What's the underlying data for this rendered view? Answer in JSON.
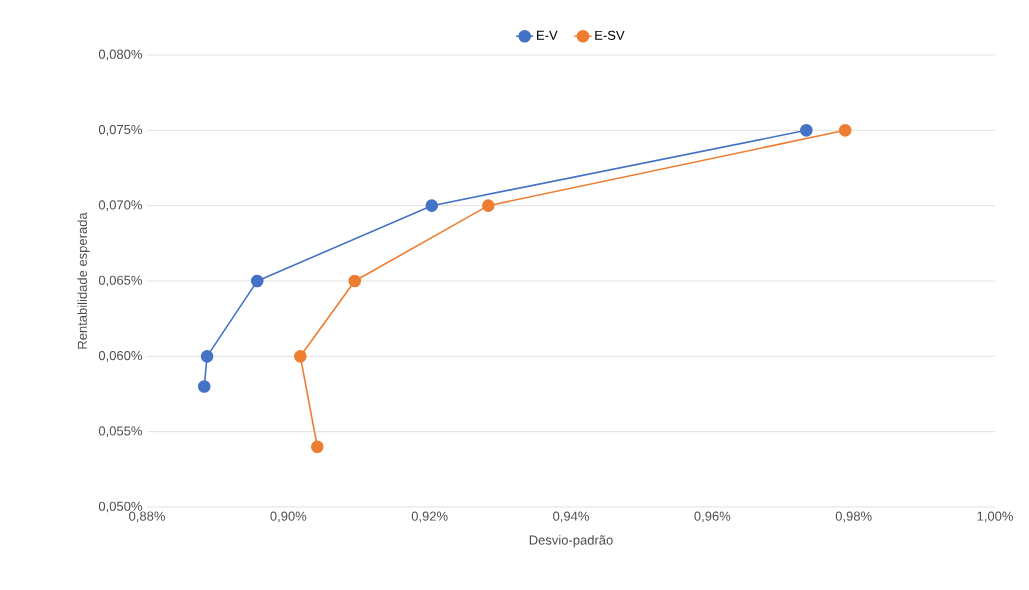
{
  "chart_data": {
    "type": "line",
    "xlabel": "Desvio-padrão",
    "ylabel": "Rentabilidade esperada",
    "series": [
      {
        "name": "E-V",
        "color": "#4472c4",
        "x": [
          0.9733,
          0.9203,
          0.8956,
          0.8885,
          0.8881
        ],
        "values": [
          0.075,
          0.07,
          0.065,
          0.06,
          0.058
        ]
      },
      {
        "name": "E-SV",
        "color": "#ed7d31",
        "x": [
          0.9788,
          0.9283,
          0.9094,
          0.9017,
          0.9041
        ],
        "values": [
          0.075,
          0.07,
          0.065,
          0.06,
          0.054
        ]
      }
    ],
    "xlim": [
      0.88,
      1.0
    ],
    "xticks": [
      {
        "value": 0.88,
        "label": "0,88%"
      },
      {
        "value": 0.9,
        "label": "0,90%"
      },
      {
        "value": 0.92,
        "label": "0,92%"
      },
      {
        "value": 0.94,
        "label": "0,94%"
      },
      {
        "value": 0.96,
        "label": "0,96%"
      },
      {
        "value": 0.98,
        "label": "0,98%"
      },
      {
        "value": 1.0,
        "label": "1,00%"
      }
    ],
    "ylim": [
      0.05,
      0.08
    ],
    "yticks": [
      {
        "value": 0.05,
        "label": "0,050%"
      },
      {
        "value": 0.055,
        "label": "0,055%"
      },
      {
        "value": 0.06,
        "label": "0,060%"
      },
      {
        "value": 0.065,
        "label": "0,065%"
      },
      {
        "value": 0.07,
        "label": "0,070%"
      },
      {
        "value": 0.075,
        "label": "0,075%"
      },
      {
        "value": 0.08,
        "label": "0,080%"
      }
    ],
    "grid": "y",
    "legend": "top",
    "marker": "circle",
    "line_style": "solid"
  }
}
